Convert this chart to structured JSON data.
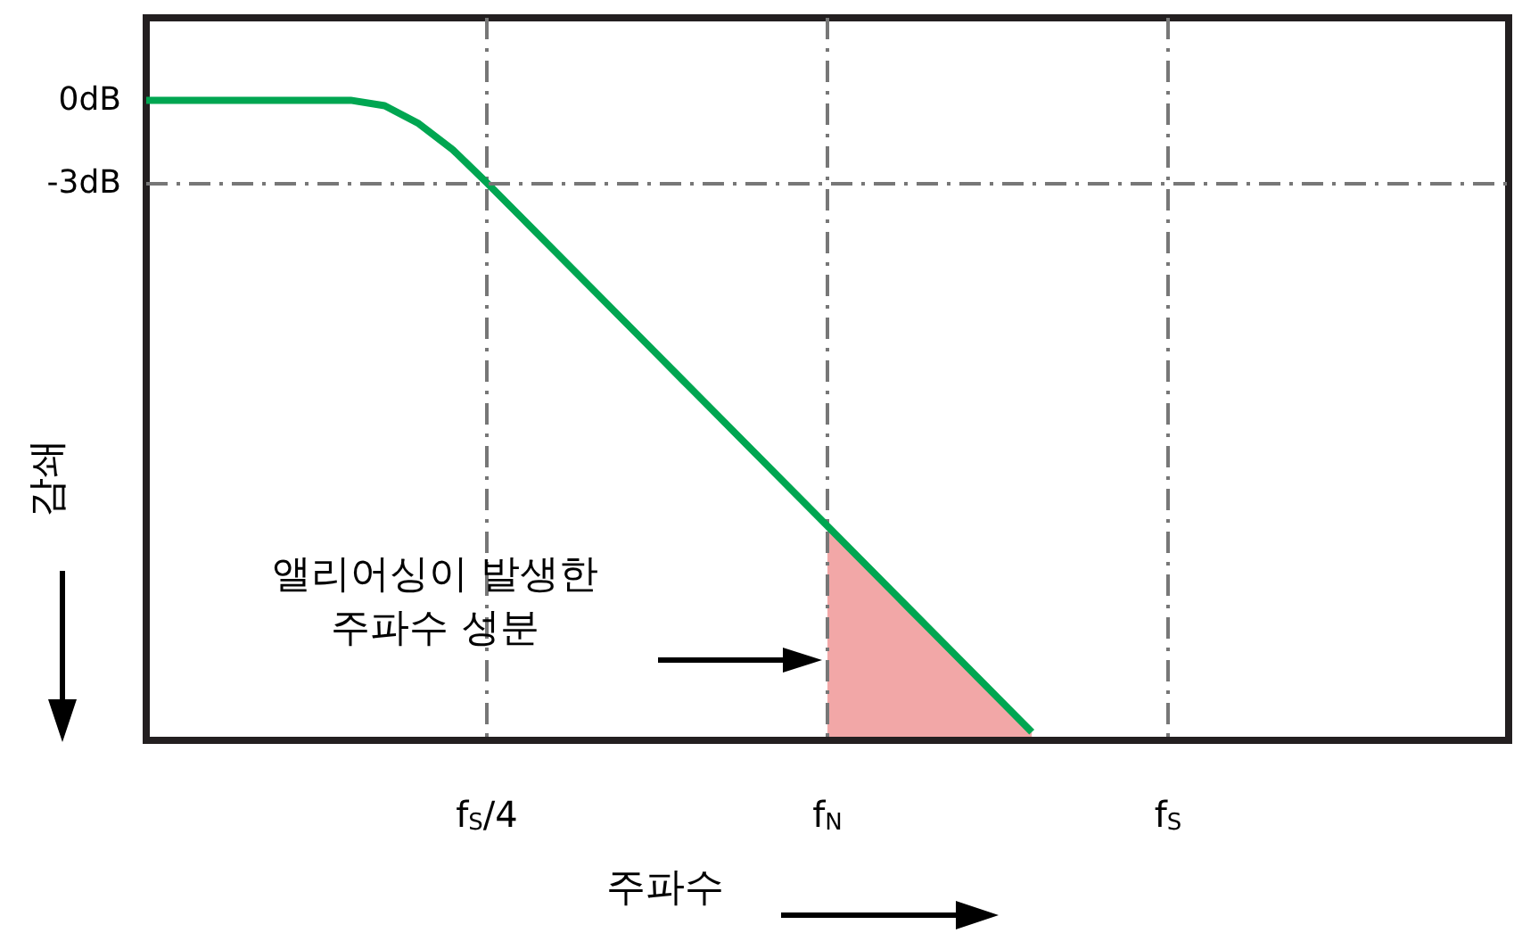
{
  "chart_data": {
    "type": "line",
    "xlabel": "주파수",
    "ylabel": "감쇄",
    "categories": [
      null,
      null,
      null,
      null,
      null,
      null,
      null,
      null,
      null,
      null,
      "f$_{S}$/4",
      null,
      null,
      null,
      null,
      null,
      null,
      null,
      null,
      null,
      "f$_{N}$",
      null,
      null,
      null,
      null,
      null,
      null,
      null,
      null,
      null,
      "f$_{S}$",
      null,
      null,
      null,
      null,
      null,
      null,
      null,
      null,
      null,
      null
    ],
    "ylim": [
      -23.3,
      3
    ],
    "yticks": [
      {
        "value": 0,
        "label": "0dB"
      },
      {
        "value": -3,
        "label": "-3dB"
      }
    ],
    "grid": "x",
    "series": [
      {
        "type": "line",
        "color": "#00a651",
        "values": [
          0,
          0,
          0,
          0,
          0,
          0,
          0,
          -0.2,
          -0.85,
          -1.8,
          -3,
          -4.25,
          -5.5,
          -6.75,
          -8,
          -9.25,
          -10.5,
          -11.75,
          -13,
          -14.25,
          -15.5,
          -16.75,
          -18,
          -19.25,
          -20.5,
          -21.75,
          -23,
          null,
          null,
          null,
          null,
          null,
          null,
          null,
          null,
          null,
          null,
          null,
          null,
          null,
          null
        ]
      }
    ],
    "ref_lines": [
      {
        "axis": "y",
        "value": -3,
        "line_style": "dashed",
        "color": "#777777"
      }
    ],
    "annotations": [
      "앨리어싱이 발생한\n주파수 성분"
    ]
  }
}
